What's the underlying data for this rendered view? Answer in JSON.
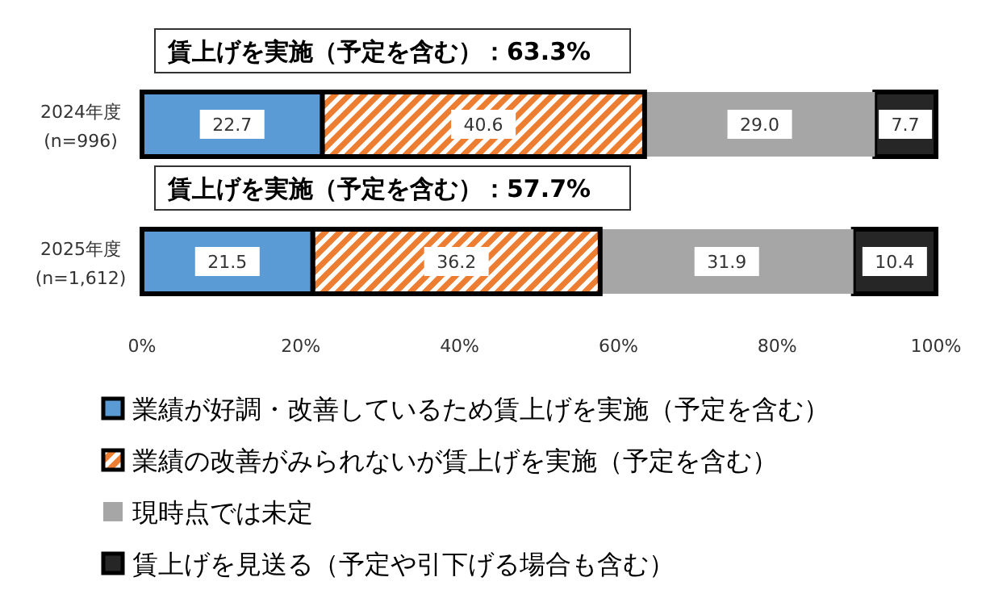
{
  "chart_data": {
    "type": "bar",
    "orientation": "horizontal",
    "stacked": true,
    "legend": "bottom",
    "categories": [
      "2024年度\n(n=996)",
      "2025年度\n(n=1,612)"
    ],
    "series": [
      {
        "name": "業績が好調・改善しているため賃上げを実施（予定を含む）",
        "color": "#5b9bd5",
        "values": [
          22.7,
          21.5
        ],
        "value_labels": [
          "22.7",
          "21.5"
        ]
      },
      {
        "name": "業績の改善がみられないが賃上げを実施（予定を含む）",
        "color": "#ed7d31",
        "values": [
          40.6,
          36.2
        ],
        "value_labels": [
          "40.6",
          "36.2"
        ]
      },
      {
        "name": "現時点では未定",
        "color": "#a6a6a6",
        "values": [
          29.0,
          31.9
        ],
        "value_labels": [
          "29.0",
          "31.9"
        ]
      },
      {
        "name": "賃上げを見送る（予定や引下げる場合も含む）",
        "color": "#262626",
        "values": [
          7.7,
          10.4
        ],
        "value_labels": [
          "7.7",
          "10.4"
        ]
      }
    ],
    "xlim": [
      0,
      100
    ],
    "xticks": [
      {
        "value": 0,
        "label": "0%"
      },
      {
        "value": 20,
        "label": "20%"
      },
      {
        "value": 40,
        "label": "40%"
      },
      {
        "value": 60,
        "label": "60%"
      },
      {
        "value": 80,
        "label": "80%"
      },
      {
        "value": 100,
        "label": "100%"
      }
    ],
    "annotations": [
      "賃上げを実施（予定を含む）：63.3%",
      "賃上げを実施（予定を含む）：57.7%"
    ]
  }
}
